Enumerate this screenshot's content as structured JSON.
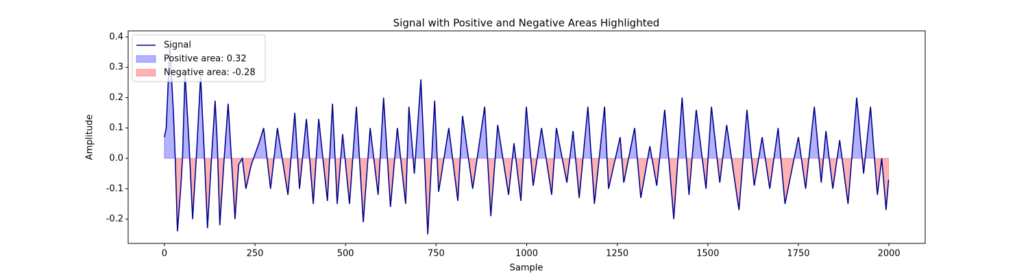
{
  "chart_data": {
    "type": "line",
    "title": "Signal with Positive and Negative Areas Highlighted",
    "xlabel": "Sample",
    "ylabel": "Amplitude",
    "xlim": [
      -100,
      2100
    ],
    "ylim": [
      -0.28,
      0.42
    ],
    "xticks": [
      0,
      250,
      500,
      750,
      1000,
      1250,
      1500,
      1750,
      2000
    ],
    "yticks": [
      -0.2,
      -0.1,
      {
        "value": 0,
        "label": "0.0"
      },
      0.1,
      0.2,
      0.3,
      0.4
    ],
    "grid": false,
    "legend": "upper left",
    "x": [
      0,
      5,
      15,
      25,
      30,
      36,
      45,
      50,
      57,
      68,
      78,
      88,
      100,
      110,
      119,
      130,
      140,
      146,
      153,
      165,
      176,
      185,
      195,
      205,
      215,
      225,
      240,
      261,
      274,
      293,
      312,
      341,
      360,
      373,
      392,
      411,
      426,
      450,
      464,
      477,
      492,
      511,
      530,
      549,
      568,
      590,
      605,
      624,
      643,
      666,
      675,
      690,
      708,
      727,
      746,
      757,
      785,
      810,
      823,
      851,
      884,
      901,
      920,
      950,
      965,
      984,
      999,
      1018,
      1041,
      1069,
      1082,
      1111,
      1128,
      1145,
      1169,
      1187,
      1215,
      1226,
      1258,
      1268,
      1298,
      1315,
      1340,
      1359,
      1381,
      1406,
      1429,
      1448,
      1468,
      1495,
      1510,
      1533,
      1552,
      1586,
      1608,
      1628,
      1650,
      1671,
      1694,
      1713,
      1750,
      1770,
      1794,
      1813,
      1826,
      1845,
      1864,
      1887,
      1911,
      1930,
      1949,
      1968,
      1980,
      1992,
      1999
    ],
    "series": [
      {
        "name": "Signal",
        "color": "#00008b",
        "values": [
          0.07,
          0.1,
          0.37,
          0.15,
          0.0,
          -0.24,
          -0.1,
          0.0,
          0.28,
          0.05,
          -0.2,
          0.0,
          0.27,
          0.02,
          -0.23,
          0.0,
          0.19,
          0.05,
          -0.22,
          0.0,
          0.18,
          0.0,
          -0.2,
          -0.02,
          0.0,
          -0.1,
          -0.02,
          0.05,
          0.1,
          -0.1,
          0.1,
          -0.12,
          0.15,
          -0.1,
          0.13,
          -0.15,
          0.13,
          -0.14,
          0.18,
          -0.15,
          0.08,
          -0.15,
          0.17,
          -0.21,
          0.1,
          -0.12,
          0.2,
          -0.16,
          0.1,
          -0.15,
          0.17,
          -0.05,
          0.26,
          -0.25,
          0.19,
          -0.11,
          0.1,
          -0.14,
          0.14,
          -0.1,
          0.17,
          -0.19,
          0.11,
          -0.12,
          0.05,
          -0.14,
          0.17,
          -0.09,
          0.1,
          -0.12,
          0.1,
          -0.08,
          0.09,
          -0.13,
          0.17,
          -0.15,
          0.17,
          -0.1,
          0.07,
          -0.08,
          0.1,
          -0.13,
          0.04,
          -0.09,
          0.16,
          -0.2,
          0.2,
          -0.12,
          0.16,
          -0.1,
          0.17,
          -0.08,
          0.11,
          -0.17,
          0.16,
          -0.09,
          0.07,
          -0.1,
          0.1,
          -0.15,
          0.07,
          -0.1,
          0.17,
          -0.08,
          0.09,
          -0.1,
          0.06,
          -0.15,
          0.2,
          -0.05,
          0.17,
          -0.12,
          0.0,
          -0.17,
          -0.07
        ]
      }
    ],
    "fills": [
      {
        "name": "Positive area: 0.32",
        "color": "blue",
        "where": "above"
      },
      {
        "name": "Negative area: -0.28",
        "color": "red",
        "where": "below"
      }
    ]
  }
}
